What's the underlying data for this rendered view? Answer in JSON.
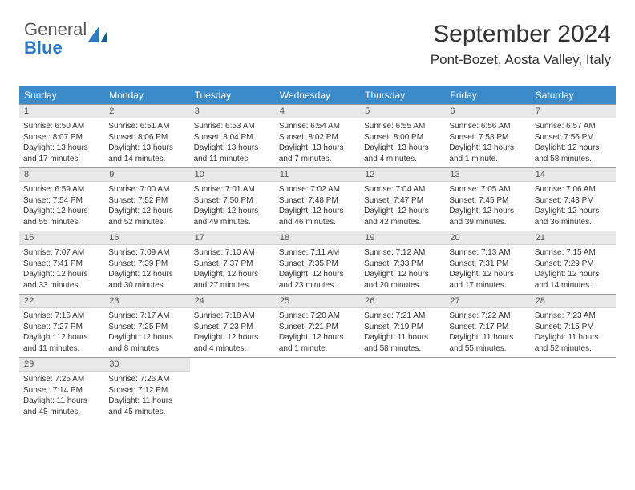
{
  "logo": {
    "text1": "General",
    "text2": "Blue"
  },
  "title": "September 2024",
  "location": "Pont-Bozet, Aosta Valley, Italy",
  "brand_color": "#3b8bca",
  "daynum_bg": "#e8e8e8",
  "day_headers": [
    "Sunday",
    "Monday",
    "Tuesday",
    "Wednesday",
    "Thursday",
    "Friday",
    "Saturday"
  ],
  "weeks": [
    [
      {
        "n": "1",
        "sr": "6:50 AM",
        "ss": "8:07 PM",
        "dl": "13 hours and 17 minutes."
      },
      {
        "n": "2",
        "sr": "6:51 AM",
        "ss": "8:06 PM",
        "dl": "13 hours and 14 minutes."
      },
      {
        "n": "3",
        "sr": "6:53 AM",
        "ss": "8:04 PM",
        "dl": "13 hours and 11 minutes."
      },
      {
        "n": "4",
        "sr": "6:54 AM",
        "ss": "8:02 PM",
        "dl": "13 hours and 7 minutes."
      },
      {
        "n": "5",
        "sr": "6:55 AM",
        "ss": "8:00 PM",
        "dl": "13 hours and 4 minutes."
      },
      {
        "n": "6",
        "sr": "6:56 AM",
        "ss": "7:58 PM",
        "dl": "13 hours and 1 minute."
      },
      {
        "n": "7",
        "sr": "6:57 AM",
        "ss": "7:56 PM",
        "dl": "12 hours and 58 minutes."
      }
    ],
    [
      {
        "n": "8",
        "sr": "6:59 AM",
        "ss": "7:54 PM",
        "dl": "12 hours and 55 minutes."
      },
      {
        "n": "9",
        "sr": "7:00 AM",
        "ss": "7:52 PM",
        "dl": "12 hours and 52 minutes."
      },
      {
        "n": "10",
        "sr": "7:01 AM",
        "ss": "7:50 PM",
        "dl": "12 hours and 49 minutes."
      },
      {
        "n": "11",
        "sr": "7:02 AM",
        "ss": "7:48 PM",
        "dl": "12 hours and 46 minutes."
      },
      {
        "n": "12",
        "sr": "7:04 AM",
        "ss": "7:47 PM",
        "dl": "12 hours and 42 minutes."
      },
      {
        "n": "13",
        "sr": "7:05 AM",
        "ss": "7:45 PM",
        "dl": "12 hours and 39 minutes."
      },
      {
        "n": "14",
        "sr": "7:06 AM",
        "ss": "7:43 PM",
        "dl": "12 hours and 36 minutes."
      }
    ],
    [
      {
        "n": "15",
        "sr": "7:07 AM",
        "ss": "7:41 PM",
        "dl": "12 hours and 33 minutes."
      },
      {
        "n": "16",
        "sr": "7:09 AM",
        "ss": "7:39 PM",
        "dl": "12 hours and 30 minutes."
      },
      {
        "n": "17",
        "sr": "7:10 AM",
        "ss": "7:37 PM",
        "dl": "12 hours and 27 minutes."
      },
      {
        "n": "18",
        "sr": "7:11 AM",
        "ss": "7:35 PM",
        "dl": "12 hours and 23 minutes."
      },
      {
        "n": "19",
        "sr": "7:12 AM",
        "ss": "7:33 PM",
        "dl": "12 hours and 20 minutes."
      },
      {
        "n": "20",
        "sr": "7:13 AM",
        "ss": "7:31 PM",
        "dl": "12 hours and 17 minutes."
      },
      {
        "n": "21",
        "sr": "7:15 AM",
        "ss": "7:29 PM",
        "dl": "12 hours and 14 minutes."
      }
    ],
    [
      {
        "n": "22",
        "sr": "7:16 AM",
        "ss": "7:27 PM",
        "dl": "12 hours and 11 minutes."
      },
      {
        "n": "23",
        "sr": "7:17 AM",
        "ss": "7:25 PM",
        "dl": "12 hours and 8 minutes."
      },
      {
        "n": "24",
        "sr": "7:18 AM",
        "ss": "7:23 PM",
        "dl": "12 hours and 4 minutes."
      },
      {
        "n": "25",
        "sr": "7:20 AM",
        "ss": "7:21 PM",
        "dl": "12 hours and 1 minute."
      },
      {
        "n": "26",
        "sr": "7:21 AM",
        "ss": "7:19 PM",
        "dl": "11 hours and 58 minutes."
      },
      {
        "n": "27",
        "sr": "7:22 AM",
        "ss": "7:17 PM",
        "dl": "11 hours and 55 minutes."
      },
      {
        "n": "28",
        "sr": "7:23 AM",
        "ss": "7:15 PM",
        "dl": "11 hours and 52 minutes."
      }
    ],
    [
      {
        "n": "29",
        "sr": "7:25 AM",
        "ss": "7:14 PM",
        "dl": "11 hours and 48 minutes."
      },
      {
        "n": "30",
        "sr": "7:26 AM",
        "ss": "7:12 PM",
        "dl": "11 hours and 45 minutes."
      },
      null,
      null,
      null,
      null,
      null
    ]
  ]
}
